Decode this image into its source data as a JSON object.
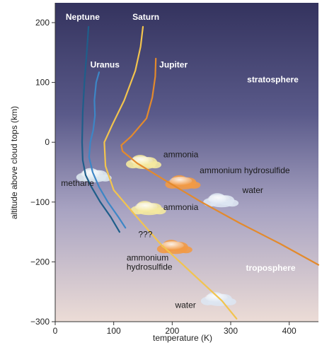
{
  "chart_data": {
    "type": "line",
    "title": "",
    "xlabel": "temperature (K)",
    "ylabel": "altitude above cloud tops (km)",
    "xlim": [
      0,
      450
    ],
    "ylim": [
      -300,
      220
    ],
    "x_ticks": [
      0,
      100,
      200,
      300,
      400
    ],
    "y_ticks": [
      200,
      100,
      0,
      -100,
      -200,
      -300
    ],
    "x_tick_labels": [
      "0",
      "100",
      "200",
      "300",
      "400"
    ],
    "y_tick_labels": [
      "200",
      "100",
      "0",
      "−100",
      "−200",
      "−300"
    ],
    "grid": false,
    "legend": "none",
    "series": [
      {
        "name": "Neptune",
        "color": "#1f5e8a",
        "points": [
          [
            57,
            193
          ],
          [
            54,
            150
          ],
          [
            50,
            100
          ],
          [
            47,
            50
          ],
          [
            46,
            0
          ],
          [
            47,
            -30
          ],
          [
            52,
            -55
          ],
          [
            62,
            -75
          ],
          [
            77,
            -100
          ],
          [
            95,
            -125
          ],
          [
            110,
            -150
          ]
        ]
      },
      {
        "name": "Uranus",
        "color": "#3d86c6",
        "points": [
          [
            75,
            117
          ],
          [
            70,
            100
          ],
          [
            67,
            70
          ],
          [
            68,
            45
          ],
          [
            65,
            20
          ],
          [
            60,
            0
          ],
          [
            58,
            -25
          ],
          [
            64,
            -50
          ],
          [
            75,
            -75
          ],
          [
            90,
            -100
          ],
          [
            108,
            -125
          ],
          [
            120,
            -143
          ]
        ]
      },
      {
        "name": "Saturn",
        "color": "#f2c44e",
        "points": [
          [
            150,
            193
          ],
          [
            146,
            160
          ],
          [
            137,
            120
          ],
          [
            118,
            70
          ],
          [
            98,
            30
          ],
          [
            84,
            0
          ],
          [
            86,
            -40
          ],
          [
            100,
            -80
          ],
          [
            135,
            -120
          ],
          [
            180,
            -170
          ],
          [
            235,
            -220
          ],
          [
            285,
            -265
          ],
          [
            310,
            -295
          ]
        ]
      },
      {
        "name": "Jupiter",
        "color": "#e38a2c",
        "points": [
          [
            172,
            140
          ],
          [
            171,
            110
          ],
          [
            166,
            75
          ],
          [
            156,
            40
          ],
          [
            130,
            10
          ],
          [
            113,
            -5
          ],
          [
            115,
            -15
          ],
          [
            140,
            -35
          ],
          [
            190,
            -65
          ],
          [
            250,
            -100
          ],
          [
            315,
            -135
          ],
          [
            385,
            -170
          ],
          [
            450,
            -205
          ]
        ]
      }
    ],
    "annotations": [
      {
        "text": "stratosphere",
        "x": 328,
        "y": 100
      },
      {
        "text": "troposphere",
        "x": 326,
        "y": -215
      },
      {
        "text": "ammonia",
        "x": 185,
        "y": -25
      },
      {
        "text": "ammonium hydrosulfide",
        "x": 247,
        "y": -52
      },
      {
        "text": "water",
        "x": 320,
        "y": -85
      },
      {
        "text": "methane",
        "x": 10,
        "y": -73
      },
      {
        "text": "ammonia",
        "x": 185,
        "y": -113
      },
      {
        "text": "???",
        "x": 142,
        "y": -159
      },
      {
        "text": "ammonium",
        "x": 122,
        "y": -198
      },
      {
        "text": "hydrosulfide",
        "x": 122,
        "y": -213
      },
      {
        "text": "water",
        "x": 205,
        "y": -277
      }
    ],
    "clouds": [
      {
        "name": "ammonia-cloud-upper",
        "x": 150,
        "y": -33,
        "color": "#f4e9a0"
      },
      {
        "name": "ammonium-hydrosulfide-cloud-upper",
        "x": 217,
        "y": -67,
        "color": "#f29a45"
      },
      {
        "name": "water-cloud-upper",
        "x": 282,
        "y": -97,
        "color": "#dde6f2"
      },
      {
        "name": "methane-cloud",
        "x": 65,
        "y": -55,
        "color": "#dbe7ee"
      },
      {
        "name": "ammonia-cloud-lower",
        "x": 158,
        "y": -110,
        "color": "#f4e9a0"
      },
      {
        "name": "ammonium-hydrosulfide-cloud-lower",
        "x": 203,
        "y": -175,
        "color": "#f29a45"
      },
      {
        "name": "water-cloud-lower",
        "x": 278,
        "y": -262,
        "color": "#dde6f2"
      }
    ]
  }
}
